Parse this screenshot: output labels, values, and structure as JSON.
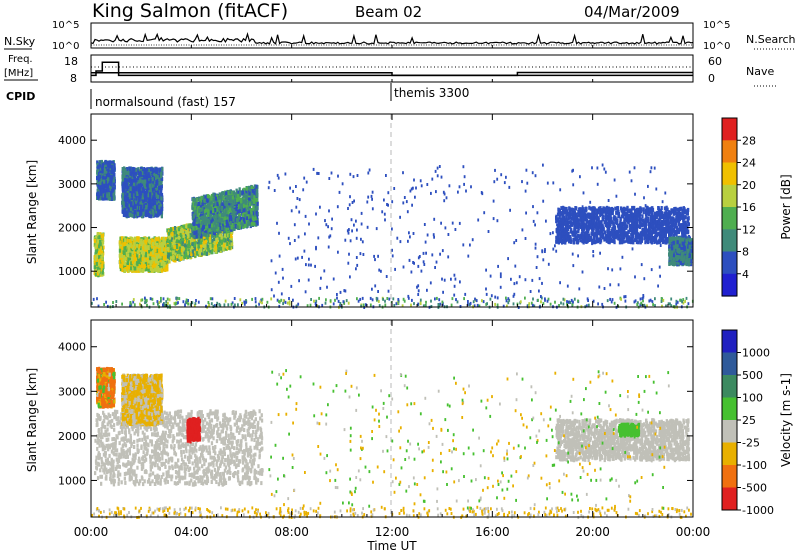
{
  "header": {
    "station": "King Salmon (fitACF)",
    "beam": "Beam 02",
    "date": "04/Mar/2009"
  },
  "top_panel": {
    "nsky_label": "N.Sky",
    "nsearch_label": "N.Search",
    "nsky_ticks": [
      "10^5",
      "10^0"
    ],
    "nsearch_ticks": [
      "10^5",
      "10^0"
    ],
    "freq_label": "Freq.",
    "freq_unit": "[MHz]",
    "freq_ticks": [
      "18",
      "8"
    ],
    "nave_label": "Nave",
    "nave_ticks": [
      "60",
      "0"
    ],
    "cpid_label": "CPID",
    "cpid_modes": [
      {
        "name": "normalsound (fast) 157",
        "start_hour": 0
      },
      {
        "name": "themis 3300",
        "start_hour": 12
      }
    ],
    "freq_steps": [
      {
        "t0": 0,
        "t1": 0.2,
        "mhz": 11
      },
      {
        "t0": 0.2,
        "t1": 0.45,
        "mhz": 13
      },
      {
        "t0": 0.45,
        "t1": 1.1,
        "mhz": 17
      },
      {
        "t0": 1.1,
        "t1": 24,
        "mhz": 11
      }
    ],
    "nave_steps": [
      {
        "t0": 0,
        "t1": 12,
        "value": 25
      },
      {
        "t0": 12,
        "t1": 17,
        "value": 18
      },
      {
        "t0": 17,
        "t1": 24,
        "value": 26
      }
    ]
  },
  "chart_data": [
    {
      "type": "heatmap",
      "name": "power",
      "ylabel": "Slant Range [km]",
      "colorbar_label": "Power [dB]",
      "yticks": [
        "1000",
        "2000",
        "3000",
        "4000"
      ],
      "ylim": [
        180,
        4600
      ],
      "xlim": [
        0,
        24
      ],
      "colorbar_ticks": [
        "4",
        "8",
        "12",
        "16",
        "20",
        "24",
        "28"
      ],
      "colors": [
        "#2020d0",
        "#2d4fbf",
        "#3f8a7a",
        "#4fae50",
        "#b8d040",
        "#f0c000",
        "#f08010",
        "#e02020"
      ],
      "regions": [
        {
          "t0": 0.1,
          "t1": 0.45,
          "r0": 950,
          "r1": 1900,
          "v0": 12,
          "v1": 24
        },
        {
          "t0": 1.1,
          "t1": 3.0,
          "r0": 1050,
          "r1": 1800,
          "v0": 14,
          "v1": 24
        },
        {
          "t0": 3.0,
          "t1": 5.6,
          "r0": 1250,
          "r1": 2000,
          "v0": 10,
          "v1": 22
        },
        {
          "t0": 4.0,
          "t1": 6.6,
          "r0": 1800,
          "r1": 2700,
          "v0": 6,
          "v1": 14
        },
        {
          "t0": 1.2,
          "t1": 2.8,
          "r0": 2300,
          "r1": 3400,
          "v0": 4,
          "v1": 10
        },
        {
          "t0": 0.2,
          "t1": 0.9,
          "r0": 2700,
          "r1": 3550,
          "v0": 4,
          "v1": 10
        },
        {
          "t0": 18.5,
          "t1": 23.8,
          "r0": 1700,
          "r1": 2500,
          "v0": 4,
          "v1": 8
        },
        {
          "t0": 23.0,
          "t1": 23.9,
          "r0": 1200,
          "r1": 1800,
          "v0": 6,
          "v1": 12
        },
        {
          "t0": 0.0,
          "t1": 24.0,
          "r0": 180,
          "r1": 420,
          "v0": 4,
          "v1": 18
        },
        {
          "t0": 7.0,
          "t1": 23.0,
          "r0": 400,
          "r1": 3500,
          "v0": 4,
          "v1": 8
        }
      ]
    },
    {
      "type": "heatmap",
      "name": "velocity",
      "ylabel": "Slant Range [km]",
      "colorbar_label": "Velocity [m s-1]",
      "yticks": [
        "1000",
        "2000",
        "3000",
        "4000"
      ],
      "ylim": [
        180,
        4600
      ],
      "xlim": [
        0,
        24
      ],
      "colorbar_ticks": [
        "1000",
        "500",
        "100",
        "25",
        "-25",
        "-100",
        "-500",
        "-1000"
      ],
      "colors": [
        "#2020c0",
        "#2f5a9a",
        "#3c8a60",
        "#46c030",
        "#c0c0b8",
        "#e8b000",
        "#f07010",
        "#e02020"
      ],
      "regions": [
        {
          "t0": 0.1,
          "t1": 6.8,
          "r0": 950,
          "r1": 2600,
          "v0": -25,
          "v1": 25
        },
        {
          "t0": 1.2,
          "t1": 2.8,
          "r0": 2300,
          "r1": 3400,
          "v0": -100,
          "v1": 25
        },
        {
          "t0": 0.2,
          "t1": 0.9,
          "r0": 2700,
          "r1": 3550,
          "v0": -500,
          "v1": 100
        },
        {
          "t0": 3.8,
          "t1": 4.3,
          "r0": 1900,
          "r1": 2400,
          "v0": -1000,
          "v1": -500
        },
        {
          "t0": 18.5,
          "t1": 23.8,
          "r0": 1500,
          "r1": 2400,
          "v0": -25,
          "v1": 25
        },
        {
          "t0": 21.0,
          "t1": 21.8,
          "r0": 2050,
          "r1": 2300,
          "v0": 25,
          "v1": 100
        },
        {
          "t0": 0.0,
          "t1": 24.0,
          "r0": 180,
          "r1": 420,
          "v0": -100,
          "v1": 25
        },
        {
          "t0": 7.0,
          "t1": 23.0,
          "r0": 400,
          "r1": 3500,
          "v0": -100,
          "v1": 100
        }
      ]
    }
  ],
  "xaxis": {
    "ticks": [
      "00:00",
      "04:00",
      "08:00",
      "12:00",
      "16:00",
      "20:00",
      "00:00"
    ],
    "label": "Time UT"
  }
}
